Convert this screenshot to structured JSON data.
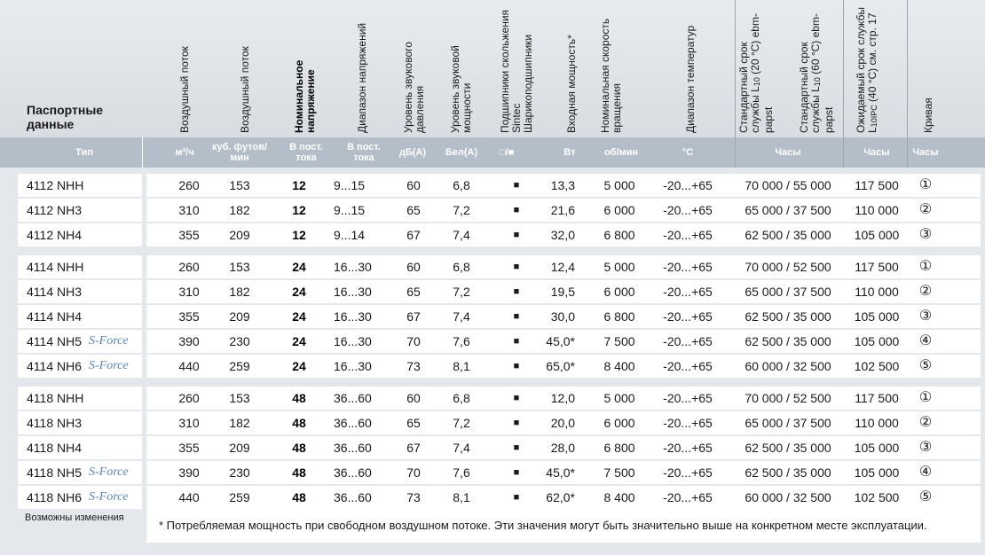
{
  "header": {
    "section_title": "Паспортные данные",
    "columns": [
      "Воздушный поток",
      "Воздушный поток",
      "Номинальное напряжение",
      "Диапазон напряжений",
      "Уровень звукового давления",
      "Уровень звуковой мощности",
      "Подшипники скольжения Sintec Шарикоподшипники",
      "Входная мощность*",
      "Номинальная скорость вращения",
      "Диапазон температур",
      [
        "Стандартный срок службы L",
        "10",
        " (20 °C) ebm-papst"
      ],
      [
        "Стандартный срок службы L",
        "10",
        " (60 °C) ebm-papst"
      ],
      [
        "Ожидаемый срок службы L",
        "10IPC",
        " (40 °C) см. стр. 17"
      ],
      "Кривая"
    ],
    "units": [
      "Тип",
      "м³/ч",
      "куб. футов/мин",
      "В пост. тока",
      "В пост. тока",
      "дБ(A)",
      "Бел(A)",
      "□/■",
      "Вт",
      "об/мин",
      "°C",
      "Часы",
      "Часы",
      "Часы"
    ]
  },
  "table": {
    "groups": [
      {
        "rows": [
          {
            "cells": [
              "4112 NHH",
              "260",
              "153",
              "12",
              "9...15",
              "60",
              "6,8",
              "■",
              "13,3",
              "5 000",
              "-20...+65",
              "70 000 / 55 000",
              "117 500",
              "①"
            ]
          },
          {
            "cells": [
              "4112 NH3",
              "310",
              "182",
              "12",
              "9...15",
              "65",
              "7,2",
              "■",
              "21,6",
              "6 000",
              "-20...+65",
              "65 000 / 37 500",
              "110 000",
              "②"
            ]
          },
          {
            "cells": [
              "4112 NH4",
              "355",
              "209",
              "12",
              "9...14",
              "67",
              "7,4",
              "■",
              "32,0",
              "6 800",
              "-20...+65",
              "62 500 / 35 000",
              "105 000",
              "③"
            ]
          }
        ]
      },
      {
        "rows": [
          {
            "cells": [
              "4114 NHH",
              "260",
              "153",
              "24",
              "16...30",
              "60",
              "6,8",
              "■",
              "12,4",
              "5 000",
              "-20...+65",
              "70 000 / 52 500",
              "117 500",
              "①"
            ]
          },
          {
            "cells": [
              "4114 NH3",
              "310",
              "182",
              "24",
              "16...30",
              "65",
              "7,2",
              "■",
              "19,5",
              "6 000",
              "-20...+65",
              "65 000 / 37 500",
              "110 000",
              "②"
            ]
          },
          {
            "cells": [
              "4114 NH4",
              "355",
              "209",
              "24",
              "16...30",
              "67",
              "7,4",
              "■",
              "30,0",
              "6 800",
              "-20...+65",
              "62 500 / 35 000",
              "105 000",
              "③"
            ]
          },
          {
            "cells": [
              "4114 NH5",
              "390",
              "230",
              "24",
              "16...30",
              "70",
              "7,6",
              "■",
              "45,0*",
              "7 500",
              "-20...+65",
              "62 500 / 35 000",
              "105 000",
              "④"
            ],
            "badge": "S-Force"
          },
          {
            "cells": [
              "4114 NH6",
              "440",
              "259",
              "24",
              "16...30",
              "73",
              "8,1",
              "■",
              "65,0*",
              "8 400",
              "-20...+65",
              "60 000 / 32 500",
              "102 500",
              "⑤"
            ],
            "badge": "S-Force"
          }
        ]
      },
      {
        "rows": [
          {
            "cells": [
              "4118 NHH",
              "260",
              "153",
              "48",
              "36...60",
              "60",
              "6,8",
              "■",
              "12,0",
              "5 000",
              "-20...+65",
              "70 000 / 52 500",
              "117 500",
              "①"
            ]
          },
          {
            "cells": [
              "4118 NH3",
              "310",
              "182",
              "48",
              "36...60",
              "65",
              "7,2",
              "■",
              "20,0",
              "6 000",
              "-20...+65",
              "65 000 / 37 500",
              "110 000",
              "②"
            ]
          },
          {
            "cells": [
              "4118 NH4",
              "355",
              "209",
              "48",
              "36...60",
              "67",
              "7,4",
              "■",
              "28,0",
              "6 800",
              "-20...+65",
              "62 500 / 35 000",
              "105 000",
              "③"
            ]
          },
          {
            "cells": [
              "4118 NH5",
              "390",
              "230",
              "48",
              "36...60",
              "70",
              "7,6",
              "■",
              "45,0*",
              "7 500",
              "-20...+65",
              "62 500 / 35 000",
              "105 000",
              "④"
            ],
            "badge": "S-Force"
          },
          {
            "cells": [
              "4118 NH6",
              "440",
              "259",
              "48",
              "36...60",
              "73",
              "8,1",
              "■",
              "62,0*",
              "8 400",
              "-20...+65",
              "60 000 / 32 500",
              "102 500",
              "⑤"
            ],
            "badge": "S-Force"
          }
        ]
      }
    ]
  },
  "footer": {
    "left_note": "Возможны изменения",
    "note": "* Потребляемая мощность при свободном воздушном потоке. Эти значения могут быть значительно выше на конкретном месте эксплуатации."
  }
}
